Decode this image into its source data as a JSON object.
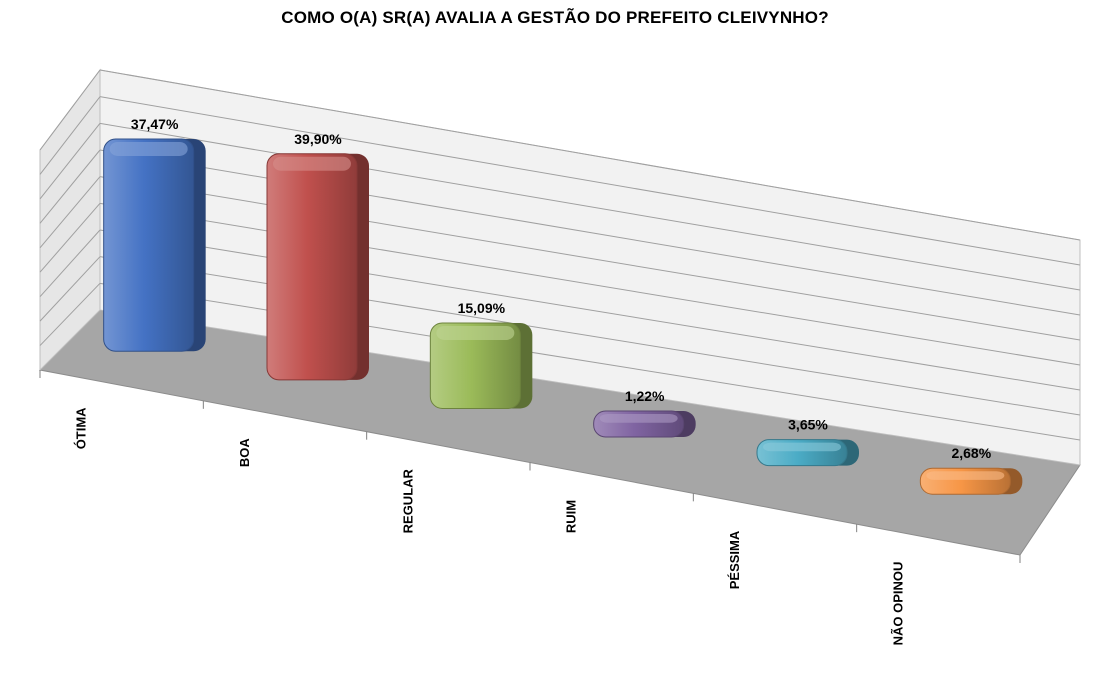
{
  "chart_data": {
    "type": "bar",
    "title": "COMO O(A) SR(A) AVALIA A GESTÃO DO PREFEITO CLEIVYNHO?",
    "categories": [
      "ÓTIMA",
      "BOA",
      "REGULAR",
      "RUIM",
      "PÉSSIMA",
      "NÃO OPINOU"
    ],
    "values": [
      37.47,
      39.9,
      15.09,
      1.22,
      3.65,
      2.68
    ],
    "value_labels": [
      "37,47%",
      "39,90%",
      "15,09%",
      "1,22%",
      "3,65%",
      "2,68%"
    ],
    "colors": [
      "#4472C4",
      "#C0504D",
      "#9BBB59",
      "#8064A2",
      "#4BACC6",
      "#F79646"
    ],
    "ylim": [
      0,
      45
    ],
    "grid": true,
    "style": "3d-perspective",
    "legend": "none"
  }
}
